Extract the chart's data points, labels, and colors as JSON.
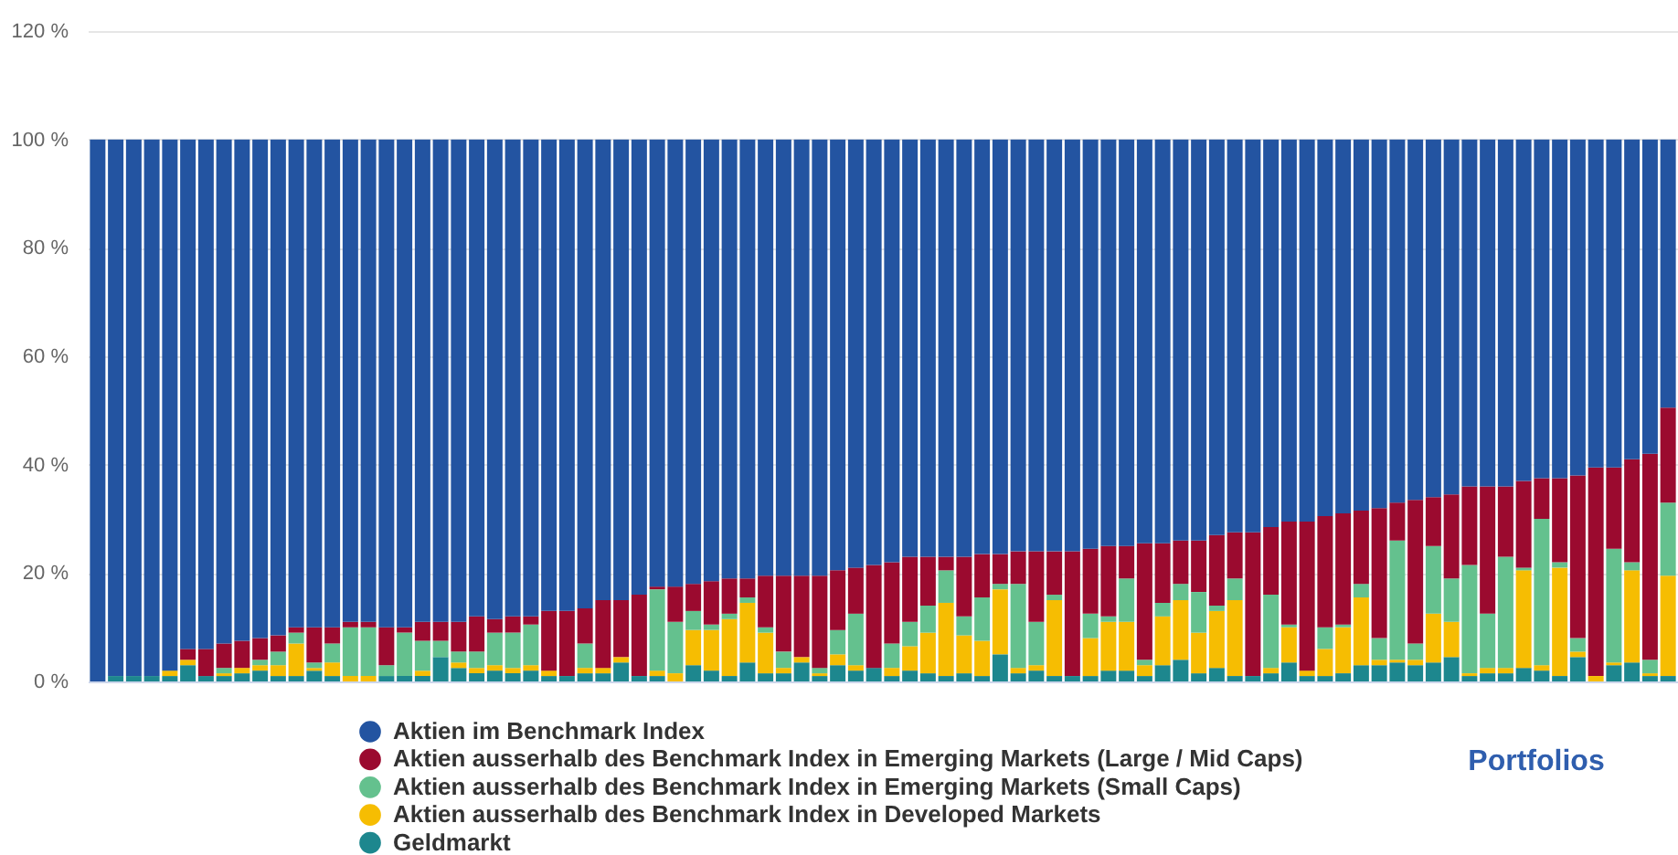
{
  "chart_data": {
    "type": "bar",
    "stacked": true,
    "xlabel": "Portfolios",
    "categories": [
      null,
      null,
      null,
      null,
      null,
      null,
      null,
      null,
      null,
      null,
      null,
      null,
      null,
      null,
      null,
      null,
      null,
      null,
      null,
      null,
      null,
      null,
      null,
      null,
      null,
      null,
      null,
      null,
      null,
      null,
      null,
      null,
      null,
      null,
      null,
      null,
      null,
      null,
      null,
      null,
      null,
      null,
      null,
      null,
      null,
      null,
      null,
      null,
      null,
      null,
      null,
      null,
      null,
      null,
      null,
      null,
      null,
      null,
      null,
      null,
      null,
      null,
      null,
      null,
      null,
      null,
      null,
      null,
      null,
      null,
      null,
      null,
      null,
      null,
      null,
      null,
      null,
      null,
      null,
      null,
      null,
      null,
      null,
      null,
      null,
      null,
      null,
      null
    ],
    "series": [
      {
        "name": "Geldmarkt",
        "color": "#1d878e",
        "values": [
          null,
          1,
          1,
          1,
          1,
          3,
          1,
          1,
          1.5,
          2,
          1,
          1,
          2,
          1,
          null,
          null,
          1,
          1,
          1,
          4.5,
          2.5,
          1.5,
          2,
          1.5,
          2,
          1,
          1,
          1.5,
          1.5,
          3.5,
          1,
          1,
          null,
          3,
          2,
          1,
          3.5,
          1.5,
          1.5,
          3.5,
          1,
          3,
          2,
          2.5,
          1,
          2,
          1.5,
          1,
          1.5,
          1,
          5,
          1.5,
          2,
          1,
          1,
          1,
          2,
          2,
          1,
          3,
          4,
          1.5,
          2.5,
          1,
          1,
          1.5,
          3.5,
          1,
          1,
          1.5,
          3,
          3,
          3.5,
          3,
          3.5,
          4.5,
          1,
          1.5,
          1.5,
          2.5,
          2,
          1,
          4.5,
          null,
          3,
          3.5,
          1,
          1
        ]
      },
      {
        "name": "Aktien ausserhalb des Benchmark Index in Developed Markets",
        "color": "#f6bd02",
        "values": [
          null,
          null,
          null,
          null,
          1,
          1,
          null,
          0.5,
          1,
          1,
          2,
          6,
          0.5,
          2.5,
          1,
          1,
          null,
          null,
          1,
          null,
          1,
          1,
          1,
          1,
          1,
          1,
          null,
          1,
          1,
          1,
          null,
          1,
          1.5,
          6.5,
          7.5,
          10.5,
          11,
          7.5,
          1,
          1,
          0.5,
          2,
          1,
          null,
          1.5,
          4.5,
          7.5,
          13.5,
          7,
          6.5,
          12,
          1,
          1,
          14,
          null,
          7,
          9,
          9,
          2,
          9,
          11,
          7.5,
          10.5,
          14,
          null,
          1,
          6.5,
          1,
          5,
          8.5,
          12.5,
          1,
          0.5,
          1,
          9,
          6.5,
          0.5,
          1,
          1,
          18,
          1,
          20,
          1,
          1,
          0.5,
          17,
          0.5,
          18.5
        ]
      },
      {
        "name": "Aktien ausserhalb des Benchmark Index in Emerging Markets (Small Caps)",
        "color": "#64c18e",
        "values": [
          null,
          null,
          null,
          null,
          null,
          null,
          null,
          1,
          null,
          1,
          2.5,
          2,
          1,
          3.5,
          9,
          9,
          2,
          8,
          5.5,
          3,
          2,
          3,
          6,
          6.5,
          7.5,
          null,
          null,
          4.5,
          null,
          null,
          null,
          15,
          9.5,
          3.5,
          1,
          1,
          1,
          1,
          3,
          null,
          1,
          4.5,
          9.5,
          null,
          4.5,
          4.5,
          5,
          6,
          3.5,
          8,
          1,
          15.5,
          8,
          1,
          null,
          4.5,
          1,
          8,
          1,
          2.5,
          3,
          7.5,
          1,
          4,
          null,
          13.5,
          0.5,
          null,
          4,
          0.5,
          2.5,
          4,
          22,
          3,
          12.5,
          8,
          20,
          10,
          20.5,
          0.5,
          27,
          1,
          2.5,
          null,
          21,
          1.5,
          2.5,
          13.5
        ]
      },
      {
        "name": "Aktien ausserhalb des Benchmark Index in Emerging Markets (Large / Mid Caps)",
        "color": "#9b0a2f",
        "values": [
          null,
          null,
          null,
          null,
          null,
          2,
          5,
          4.5,
          5,
          4,
          3,
          1,
          6.5,
          3,
          1,
          1,
          7,
          1,
          3.5,
          3.5,
          5.5,
          6.5,
          2.5,
          3,
          1.5,
          11,
          12,
          6.5,
          12.5,
          10.5,
          15,
          0.5,
          6.5,
          5,
          8,
          6.5,
          3.5,
          9.5,
          14,
          15,
          17,
          11,
          8.5,
          19,
          15,
          12,
          9,
          2.5,
          11,
          8,
          5.5,
          6,
          13,
          8,
          23,
          12,
          13,
          6,
          21.5,
          11,
          8,
          9.5,
          13,
          8.5,
          26.5,
          12.5,
          19,
          27.5,
          20.5,
          20.5,
          13.5,
          24,
          7,
          26.5,
          9,
          15.5,
          14.5,
          23.5,
          13,
          16,
          7.5,
          15.5,
          30,
          38.5,
          15,
          19,
          38,
          17.5
        ]
      },
      {
        "name": "Aktien im Benchmark Index",
        "color": "#2354a1",
        "values": [
          100,
          99,
          99,
          99,
          98,
          94,
          94,
          93,
          92.5,
          92,
          91.5,
          90,
          90,
          90,
          89,
          89,
          90,
          90,
          89,
          89,
          89,
          88,
          88.5,
          88,
          88,
          87,
          87,
          86.5,
          85,
          85,
          84,
          82.5,
          82.5,
          82,
          81.5,
          81,
          81,
          80.5,
          80.5,
          80.5,
          80.5,
          79.5,
          79,
          78.5,
          78,
          77,
          77,
          77,
          77,
          76.5,
          76.5,
          76,
          76,
          76,
          76,
          75.5,
          75,
          75,
          74.5,
          74.5,
          74,
          74,
          73,
          72.5,
          72.5,
          71.5,
          70.5,
          70.5,
          69.5,
          69,
          68.5,
          68,
          67,
          66.5,
          66,
          65.5,
          64,
          64,
          64,
          63,
          62.5,
          62.5,
          62,
          60.5,
          60.5,
          59,
          58,
          49.5
        ]
      }
    ],
    "ylim": [
      0,
      120
    ],
    "yticks": [
      {
        "value": 0,
        "label": "0 %"
      },
      {
        "value": 20,
        "label": "20 %"
      },
      {
        "value": 40,
        "label": "40 %"
      },
      {
        "value": 60,
        "label": "60 %"
      },
      {
        "value": 80,
        "label": "80 %"
      },
      {
        "value": 100,
        "label": "100 %"
      },
      {
        "value": 120,
        "label": "120 %"
      }
    ],
    "grid": "y",
    "legend": "bottom",
    "tick_labels": "y"
  }
}
